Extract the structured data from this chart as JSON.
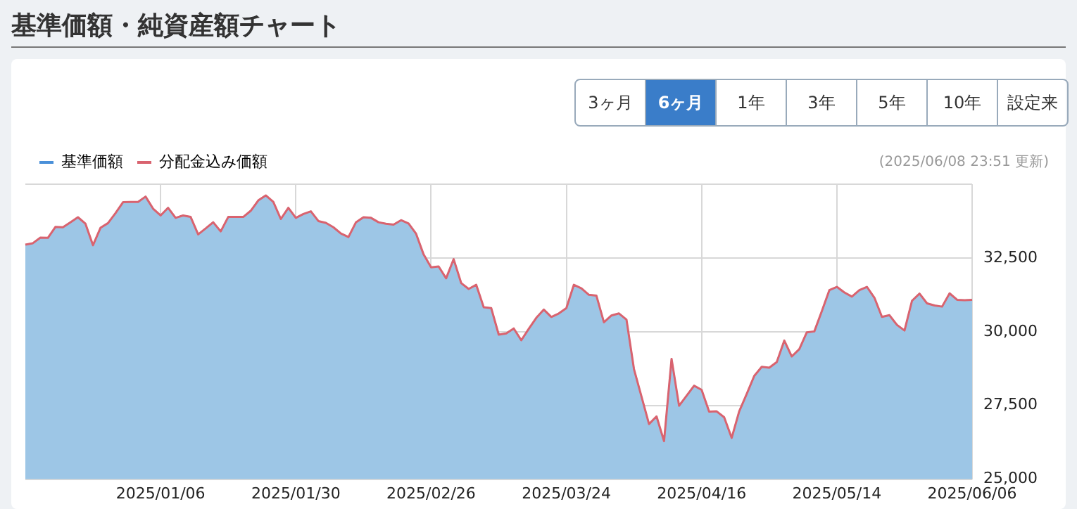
{
  "chart_data": {
    "type": "area",
    "title": "基準価額・純資産額チャート",
    "annotations": [
      "(2025/06/08 23:51 更新)",
      "3ヶ月",
      "6ヶ月",
      "1年",
      "3年",
      "5年",
      "10年",
      "設定来"
    ],
    "categories": [
      null,
      null,
      null,
      null,
      null,
      null,
      null,
      null,
      null,
      null,
      null,
      null,
      null,
      null,
      null,
      null,
      null,
      null,
      "2025/01/06",
      null,
      null,
      null,
      null,
      null,
      null,
      null,
      null,
      null,
      null,
      null,
      null,
      null,
      null,
      null,
      null,
      null,
      "2025/01/30",
      null,
      null,
      null,
      null,
      null,
      null,
      null,
      null,
      null,
      null,
      null,
      null,
      null,
      null,
      null,
      null,
      null,
      "2025/02/26",
      null,
      null,
      null,
      null,
      null,
      null,
      null,
      null,
      null,
      null,
      null,
      null,
      null,
      null,
      null,
      null,
      null,
      "2025/03/24",
      null,
      null,
      null,
      null,
      null,
      null,
      null,
      null,
      null,
      null,
      null,
      null,
      null,
      null,
      null,
      null,
      null,
      "2025/04/16",
      null,
      null,
      null,
      null,
      null,
      null,
      null,
      null,
      null,
      null,
      null,
      null,
      null,
      null,
      null,
      null,
      null,
      "2025/05/14",
      null,
      null,
      null,
      null,
      null,
      null,
      null,
      null,
      null,
      null,
      null,
      null,
      null,
      null,
      null,
      null,
      null,
      "2025/06/06"
    ],
    "series": [
      {
        "name": "基準価額",
        "color": "#9dc6e6",
        "values": [
          32950,
          33000,
          33190,
          33180,
          33550,
          33540,
          33710,
          33880,
          33660,
          32930,
          33520,
          33680,
          34020,
          34390,
          34400,
          34400,
          34580,
          34170,
          33940,
          34200,
          33860,
          33940,
          33890,
          33300,
          33500,
          33710,
          33400,
          33890,
          33890,
          33890,
          34100,
          34450,
          34620,
          34400,
          33820,
          34200,
          33860,
          33990,
          34080,
          33750,
          33690,
          33540,
          33330,
          33210,
          33710,
          33880,
          33860,
          33710,
          33660,
          33630,
          33780,
          33670,
          33320,
          32620,
          32180,
          32210,
          31810,
          32460,
          31650,
          31450,
          31590,
          30830,
          30800,
          29900,
          29940,
          30110,
          29710,
          30100,
          30470,
          30750,
          30500,
          30620,
          30800,
          31590,
          31470,
          31250,
          31220,
          30320,
          30550,
          30620,
          30410,
          28730,
          27800,
          26870,
          27130,
          26290,
          29080,
          27490,
          27830,
          28170,
          28030,
          27290,
          27300,
          27100,
          26400,
          27300,
          27890,
          28500,
          28810,
          28780,
          28970,
          29700,
          29160,
          29410,
          29980,
          30010,
          30700,
          31410,
          31520,
          31330,
          31190,
          31410,
          31520,
          31150,
          30500,
          30560,
          30230,
          30040,
          31050,
          31290,
          30960,
          30890,
          30850,
          31300,
          31080,
          31070,
          31080
        ]
      },
      {
        "name": "分配金込み価額",
        "type": "line",
        "color": "#d9636f",
        "values": [
          32950,
          33000,
          33190,
          33180,
          33550,
          33540,
          33710,
          33880,
          33660,
          32930,
          33520,
          33680,
          34020,
          34390,
          34400,
          34400,
          34580,
          34170,
          33940,
          34200,
          33860,
          33940,
          33890,
          33300,
          33500,
          33710,
          33400,
          33890,
          33890,
          33890,
          34100,
          34450,
          34620,
          34400,
          33820,
          34200,
          33860,
          33990,
          34080,
          33750,
          33690,
          33540,
          33330,
          33210,
          33710,
          33880,
          33860,
          33710,
          33660,
          33630,
          33780,
          33670,
          33320,
          32620,
          32180,
          32210,
          31810,
          32460,
          31650,
          31450,
          31590,
          30830,
          30800,
          29900,
          29940,
          30110,
          29710,
          30100,
          30470,
          30750,
          30500,
          30620,
          30800,
          31590,
          31470,
          31250,
          31220,
          30320,
          30550,
          30620,
          30410,
          28730,
          27800,
          26870,
          27130,
          26290,
          29080,
          27490,
          27830,
          28170,
          28030,
          27290,
          27300,
          27100,
          26400,
          27300,
          27890,
          28500,
          28810,
          28780,
          28970,
          29700,
          29160,
          29410,
          29980,
          30010,
          30700,
          31410,
          31520,
          31330,
          31190,
          31410,
          31520,
          31150,
          30500,
          30560,
          30230,
          30040,
          31050,
          31290,
          30960,
          30890,
          30850,
          31300,
          31080,
          31070,
          31080
        ]
      }
    ],
    "ylim": [
      25000,
      35000
    ],
    "yticks": [
      {
        "value": 25000,
        "label": "25,000"
      },
      {
        "value": 27500,
        "label": "27,500"
      },
      {
        "value": 30000,
        "label": "30,000"
      },
      {
        "value": 32500,
        "label": "32,500"
      },
      {
        "value": 35000,
        "label": null
      }
    ],
    "grid": true,
    "legend": "top left",
    "marker": "none",
    "line_style": "solid"
  }
}
